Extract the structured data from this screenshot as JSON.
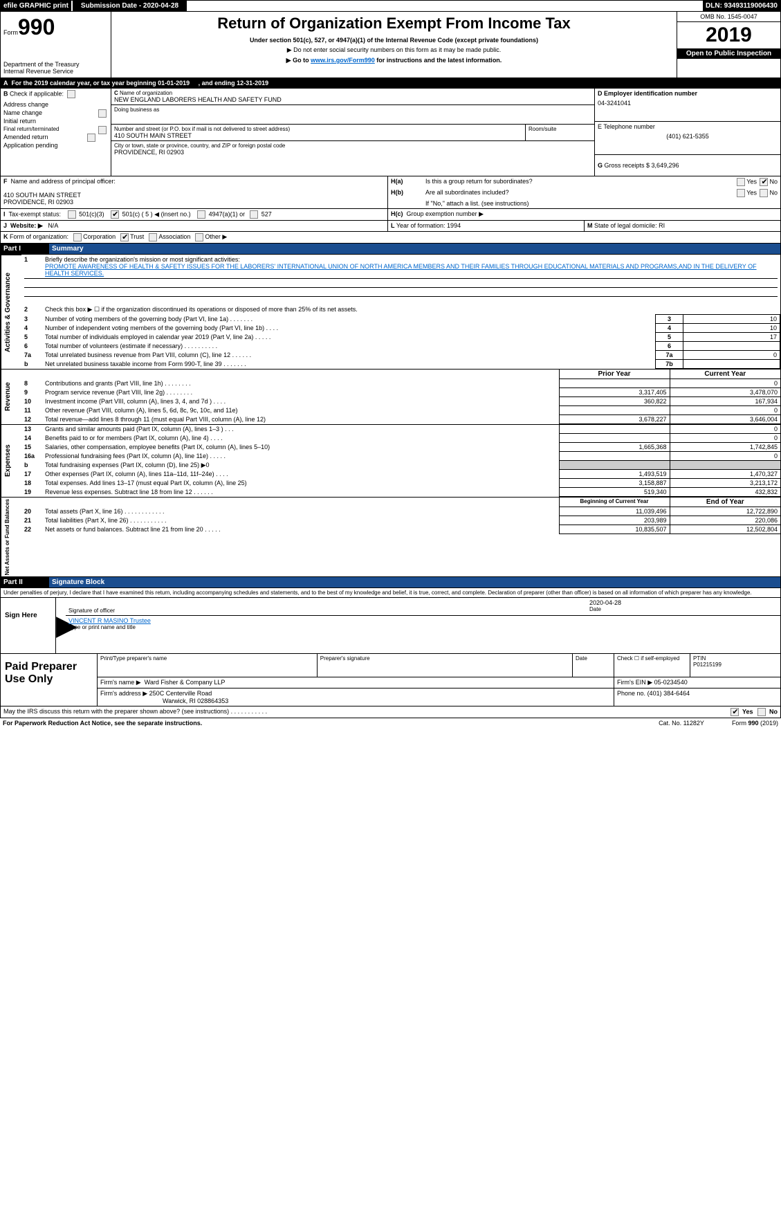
{
  "topbar": {
    "efile": "efile GRAPHIC print",
    "submission_label": "Submission Date - 2020-04-28",
    "dln_label": "DLN: 93493119006430"
  },
  "header": {
    "form_prefix": "Form",
    "form_number": "990",
    "title": "Return of Organization Exempt From Income Tax",
    "subtitle": "Under section 501(c), 527, or 4947(a)(1) of the Internal Revenue Code (except private foundations)",
    "line1": "▶ Do not enter social security numbers on this form as it may be made public.",
    "line2_prefix": "▶ Go to ",
    "line2_link": "www.irs.gov/Form990",
    "line2_suffix": " for instructions and the latest information.",
    "dept": "Department of the Treasury",
    "irs": "Internal Revenue Service",
    "omb": "OMB No. 1545-0047",
    "year": "2019",
    "open_public": "Open to Public Inspection"
  },
  "section_a": {
    "label": "A",
    "text": "For the 2019 calendar year, or tax year beginning 01-01-2019",
    "ending": ", and ending 12-31-2019"
  },
  "section_b": {
    "label": "B",
    "check_label": "Check if applicable:",
    "items": [
      "Address change",
      "Name change",
      "Initial return",
      "Final return/terminated",
      "Amended return",
      "Application pending"
    ]
  },
  "section_c": {
    "label": "C",
    "name_label": "Name of organization",
    "name": "NEW ENGLAND LABORERS HEALTH AND SAFETY FUND",
    "dba_label": "Doing business as",
    "street_label": "Number and street (or P.O. box if mail is not delivered to street address)",
    "street": "410 SOUTH MAIN STREET",
    "room_label": "Room/suite",
    "city_label": "City or town, state or province, country, and ZIP or foreign postal code",
    "city": "PROVIDENCE, RI  02903"
  },
  "section_d": {
    "label": "D Employer identification number",
    "value": "04-3241041"
  },
  "section_e": {
    "label": "E Telephone number",
    "value": "(401) 621-5355"
  },
  "section_g": {
    "label": "G",
    "text": "Gross receipts $ 3,649,296"
  },
  "section_f": {
    "label": "F",
    "text": "Name and address of principal officer:",
    "addr1": "410 SOUTH MAIN STREET",
    "addr2": "PROVIDENCE, RI  02903"
  },
  "section_h": {
    "a": "H(a)",
    "a_text": "Is this a group return for subordinates?",
    "b": "H(b)",
    "b_text": "Are all subordinates included?",
    "b_note": "If \"No,\" attach a list. (see instructions)",
    "c": "H(c)",
    "c_text": "Group exemption number ▶",
    "yes": "Yes",
    "no": "No"
  },
  "section_i": {
    "label": "I",
    "text": "Tax-exempt status:",
    "opt1": "501(c)(3)",
    "opt2": "501(c) ( 5 ) ◀ (insert no.)",
    "opt3": "4947(a)(1) or",
    "opt4": "527"
  },
  "section_j": {
    "label": "J",
    "text": "Website: ▶",
    "value": "N/A"
  },
  "section_k": {
    "label": "K",
    "text": "Form of organization:",
    "opts": [
      "Corporation",
      "Trust",
      "Association",
      "Other ▶"
    ]
  },
  "section_l": {
    "label": "L",
    "text": "Year of formation: 1994"
  },
  "section_m": {
    "label": "M",
    "text": "State of legal domicile: RI"
  },
  "part1": {
    "label": "Part I",
    "title": "Summary",
    "q1_label": "1",
    "q1_text": "Briefly describe the organization's mission or most significant activities:",
    "q1_answer": "PROMOTE AWARENESS OF HEALTH & SAFETY ISSUES FOR THE LABORERS' INTERNATIONAL UNION OF NORTH AMERICA MEMBERS AND THEIR FAMILIES THROUGH EDUCATIONAL MATERIALS AND PROGRAMS,AND IN THE DELIVERY OF HEALTH SERVICES.",
    "activities_label": "Activities & Governance",
    "revenue_label": "Revenue",
    "expenses_label": "Expenses",
    "netassets_label": "Net Assets or Fund Balances",
    "rows": [
      {
        "n": "2",
        "t": "Check this box ▶ ☐ if the organization discontinued its operations or disposed of more than 25% of its net assets."
      },
      {
        "n": "3",
        "t": "Number of voting members of the governing body (Part VI, line 1a)   .     .     .     .     .     .     .",
        "box": "3",
        "v": "10"
      },
      {
        "n": "4",
        "t": "Number of independent voting members of the governing body (Part VI, line 1b)   .     .     .     .",
        "box": "4",
        "v": "10"
      },
      {
        "n": "5",
        "t": "Total number of individuals employed in calendar year 2019 (Part V, line 2a)   .     .     .     .     .",
        "box": "5",
        "v": "17"
      },
      {
        "n": "6",
        "t": "Total number of volunteers (estimate if necessary)    .     .     .     .     .     .     .     .     .     .",
        "box": "6",
        "v": ""
      },
      {
        "n": "7a",
        "t": "Total unrelated business revenue from Part VIII, column (C), line 12   .     .     .     .     .     .",
        "box": "7a",
        "v": "0"
      },
      {
        "n": "b",
        "t": "Net unrelated business taxable income from Form 990-T, line 39   .     .     .     .     .     .     .",
        "box": "7b",
        "v": ""
      }
    ],
    "prior_year": "Prior Year",
    "current_year": "Current Year",
    "rev_rows": [
      {
        "n": "8",
        "t": "Contributions and grants (Part VIII, line 1h)   .     .     .     .     .     .     .     .",
        "p": "",
        "c": "0"
      },
      {
        "n": "9",
        "t": "Program service revenue (Part VIII, line 2g)    .     .     .     .     .     .     .     .",
        "p": "3,317,405",
        "c": "3,478,070"
      },
      {
        "n": "10",
        "t": "Investment income (Part VIII, column (A), lines 3, 4, and 7d )   .     .     .     .",
        "p": "360,822",
        "c": "167,934"
      },
      {
        "n": "11",
        "t": "Other revenue (Part VIII, column (A), lines 5, 6d, 8c, 9c, 10c, and 11e)",
        "p": "",
        "c": "0"
      },
      {
        "n": "12",
        "t": "Total revenue—add lines 8 through 11 (must equal Part VIII, column (A), line 12)",
        "p": "3,678,227",
        "c": "3,646,004"
      }
    ],
    "exp_rows": [
      {
        "n": "13",
        "t": "Grants and similar amounts paid (Part IX, column (A), lines 1–3 )   .     .     .",
        "p": "",
        "c": "0"
      },
      {
        "n": "14",
        "t": "Benefits paid to or for members (Part IX, column (A), line 4)   .     .     .     .",
        "p": "",
        "c": "0"
      },
      {
        "n": "15",
        "t": "Salaries, other compensation, employee benefits (Part IX, column (A), lines 5–10)",
        "p": "1,665,368",
        "c": "1,742,845"
      },
      {
        "n": "16a",
        "t": "Professional fundraising fees (Part IX, column (A), line 11e)   .     .     .     .     .",
        "p": "",
        "c": "0"
      },
      {
        "n": "b",
        "t": "Total fundraising expenses (Part IX, column (D), line 25) ▶0",
        "p": "_shade_",
        "c": "_shade_"
      },
      {
        "n": "17",
        "t": "Other expenses (Part IX, column (A), lines 11a–11d, 11f–24e)   .     .     .     .",
        "p": "1,493,519",
        "c": "1,470,327"
      },
      {
        "n": "18",
        "t": "Total expenses. Add lines 13–17 (must equal Part IX, column (A), line 25)",
        "p": "3,158,887",
        "c": "3,213,172"
      },
      {
        "n": "19",
        "t": "Revenue less expenses. Subtract line 18 from line 12   .     .     .     .     .     .",
        "p": "519,340",
        "c": "432,832"
      }
    ],
    "begin_year": "Beginning of Current Year",
    "end_year": "End of Year",
    "net_rows": [
      {
        "n": "20",
        "t": "Total assets (Part X, line 16)   .     .     .     .     .     .     .     .     .     .     .     .",
        "p": "11,039,496",
        "c": "12,722,890"
      },
      {
        "n": "21",
        "t": "Total liabilities (Part X, line 26)   .     .     .     .     .     .     .     .     .     .     .",
        "p": "203,989",
        "c": "220,086"
      },
      {
        "n": "22",
        "t": "Net assets or fund balances. Subtract line 21 from line 20   .     .     .     .     .",
        "p": "10,835,507",
        "c": "12,502,804"
      }
    ]
  },
  "part2": {
    "label": "Part II",
    "title": "Signature Block",
    "declaration": "Under penalties of perjury, I declare that I have examined this return, including accompanying schedules and statements, and to the best of my knowledge and belief, it is true, correct, and complete. Declaration of preparer (other than officer) is based on all information of which preparer has any knowledge.",
    "sign_here": "Sign Here",
    "sig_officer": "Signature of officer",
    "date": "2020-04-28",
    "date_label": "Date",
    "name": "VINCENT R MASINO  Trustee",
    "name_label": "Type or print name and title",
    "paid": "Paid Preparer Use Only",
    "col1": "Print/Type preparer's name",
    "col2": "Preparer's signature",
    "col3": "Date",
    "check_if": "Check ☐ if self-employed",
    "ptin_label": "PTIN",
    "ptin": "P01215199",
    "firm_name_label": "Firm's name    ▶",
    "firm_name": "Ward Fisher & Company LLP",
    "firm_ein_label": "Firm's EIN ▶",
    "firm_ein": "05-0234540",
    "firm_addr_label": "Firm's address ▶",
    "firm_addr1": "250C Centerville Road",
    "firm_addr2": "Warwick, RI  028864353",
    "phone_label": "Phone no.",
    "phone": "(401) 384-6464",
    "discuss": "May the IRS discuss this return with the preparer shown above? (see instructions)   .     .     .     .     .     .     .     .     .     .     .",
    "yes": "Yes",
    "no": "No"
  },
  "footer": {
    "left": "For Paperwork Reduction Act Notice, see the separate instructions.",
    "mid": "Cat. No. 11282Y",
    "right": "Form 990 (2019)"
  }
}
